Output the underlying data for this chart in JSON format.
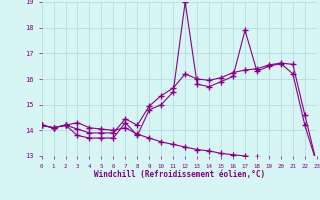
{
  "xlabel": "Windchill (Refroidissement éolien,°C)",
  "x": [
    0,
    1,
    2,
    3,
    4,
    5,
    6,
    7,
    8,
    9,
    10,
    11,
    12,
    13,
    14,
    15,
    16,
    17,
    18,
    19,
    20,
    21,
    22,
    23
  ],
  "y_top": [
    14.2,
    14.1,
    14.2,
    13.8,
    13.7,
    13.7,
    13.7,
    14.3,
    13.8,
    14.8,
    15.0,
    15.5,
    19.0,
    15.8,
    15.7,
    15.9,
    16.1,
    17.9,
    16.3,
    16.5,
    16.6,
    16.2,
    14.2,
    12.7
  ],
  "y_mid": [
    14.2,
    14.1,
    14.2,
    14.05,
    13.9,
    13.9,
    13.9,
    14.45,
    14.2,
    14.95,
    15.35,
    15.65,
    16.2,
    16.0,
    15.95,
    16.05,
    16.25,
    16.35,
    16.4,
    16.55,
    16.62,
    16.57,
    14.6,
    12.7
  ],
  "y_bot": [
    14.2,
    14.1,
    14.2,
    14.3,
    14.1,
    14.05,
    14.0,
    14.1,
    13.85,
    13.7,
    13.55,
    13.45,
    13.35,
    13.25,
    13.2,
    13.1,
    13.05,
    13.0,
    12.95,
    12.9,
    12.85,
    12.8,
    12.75,
    12.7
  ],
  "line_color": "#880088",
  "bg_color": "#d8f5f5",
  "grid_color": "#aadada",
  "ylim": [
    13,
    19
  ],
  "xlim": [
    0,
    23
  ]
}
